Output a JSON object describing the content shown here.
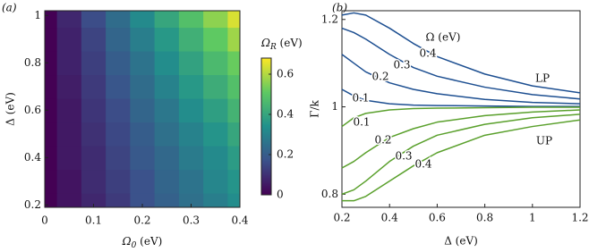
{
  "chart_data": [
    {
      "type": "heatmap",
      "panel_label": "(a)",
      "x_label": {
        "symbol": "Ω",
        "subscript": "0",
        "unit": " (eV)"
      },
      "y_label": "Δ (eV)",
      "colorbar_label": {
        "symbol": "Ω",
        "subscript": "R",
        "unit": " (eV)"
      },
      "x": [
        0,
        0.05,
        0.1,
        0.15,
        0.2,
        0.25,
        0.3,
        0.35,
        0.4
      ],
      "y": [
        0.2,
        0.3,
        0.4,
        0.5,
        0.6,
        0.7,
        0.8,
        0.9,
        1.0
      ],
      "z": [
        [
          0,
          0.04,
          0.08,
          0.12,
          0.17,
          0.21,
          0.25,
          0.29,
          0.33
        ],
        [
          0,
          0.04,
          0.09,
          0.13,
          0.17,
          0.22,
          0.26,
          0.31,
          0.35
        ],
        [
          0,
          0.05,
          0.09,
          0.14,
          0.19,
          0.23,
          0.28,
          0.32,
          0.37
        ],
        [
          0,
          0.05,
          0.1,
          0.15,
          0.2,
          0.25,
          0.3,
          0.35,
          0.4
        ],
        [
          0,
          0.05,
          0.11,
          0.16,
          0.22,
          0.27,
          0.33,
          0.38,
          0.44
        ],
        [
          0,
          0.06,
          0.12,
          0.18,
          0.24,
          0.3,
          0.36,
          0.42,
          0.48
        ],
        [
          0,
          0.07,
          0.13,
          0.2,
          0.26,
          0.33,
          0.39,
          0.46,
          0.52
        ],
        [
          0,
          0.07,
          0.14,
          0.22,
          0.29,
          0.36,
          0.43,
          0.51,
          0.58
        ],
        [
          0,
          0.08,
          0.16,
          0.24,
          0.32,
          0.4,
          0.48,
          0.56,
          0.64
        ]
      ],
      "xlim": [
        0,
        0.4
      ],
      "ylim": [
        0.19,
        1.02
      ],
      "xticks": [
        0,
        0.1,
        0.2,
        0.3,
        0.4
      ],
      "yticks": [
        0.2,
        0.4,
        0.6,
        0.8,
        1.0
      ],
      "clim": [
        0,
        0.68
      ],
      "colorbar_ticks": [
        0,
        0.2,
        0.4,
        0.6
      ],
      "colormap": "viridis"
    },
    {
      "type": "line",
      "panel_label": "(b)",
      "x_label": "Δ (eV)",
      "y_label": "Γ/k",
      "annotations": [
        "Ω (eV)",
        "LP",
        "UP"
      ],
      "x": [
        0.2,
        0.25,
        0.3,
        0.4,
        0.5,
        0.6,
        0.8,
        1.0,
        1.2
      ],
      "series": [
        {
          "name": "0.1",
          "color": "#1d4f91",
          "values": [
            1.04,
            1.025,
            1.015,
            1.007,
            1.004,
            1.003,
            1.002,
            1.001,
            1.001
          ]
        },
        {
          "name": "0.2",
          "color": "#1d4f91",
          "values": [
            1.12,
            1.1,
            1.08,
            1.055,
            1.04,
            1.03,
            1.017,
            1.01,
            1.007
          ]
        },
        {
          "name": "0.3",
          "color": "#1d4f91",
          "values": [
            1.18,
            1.17,
            1.155,
            1.12,
            1.09,
            1.07,
            1.045,
            1.028,
            1.018
          ]
        },
        {
          "name": "0.4",
          "color": "#1d4f91",
          "values": [
            1.21,
            1.215,
            1.21,
            1.18,
            1.145,
            1.115,
            1.075,
            1.048,
            1.032
          ]
        },
        {
          "name": "0.1",
          "color": "#5aa02c",
          "values": [
            0.955,
            0.975,
            0.985,
            0.993,
            0.996,
            0.997,
            0.998,
            0.999,
            0.999
          ]
        },
        {
          "name": "0.2",
          "color": "#5aa02c",
          "values": [
            0.86,
            0.875,
            0.895,
            0.93,
            0.95,
            0.965,
            0.98,
            0.988,
            0.993
          ]
        },
        {
          "name": "0.3",
          "color": "#5aa02c",
          "values": [
            0.8,
            0.81,
            0.83,
            0.875,
            0.91,
            0.935,
            0.96,
            0.975,
            0.983
          ]
        },
        {
          "name": "0.4",
          "color": "#5aa02c",
          "values": [
            0.785,
            0.785,
            0.795,
            0.83,
            0.865,
            0.895,
            0.935,
            0.955,
            0.97
          ]
        }
      ],
      "xlim": [
        0.2,
        1.2
      ],
      "ylim": [
        0.77,
        1.22
      ],
      "xticks": [
        0.2,
        0.4,
        0.6,
        0.8,
        1,
        1.2
      ],
      "yticks": [
        0.8,
        1,
        1.2
      ]
    }
  ]
}
